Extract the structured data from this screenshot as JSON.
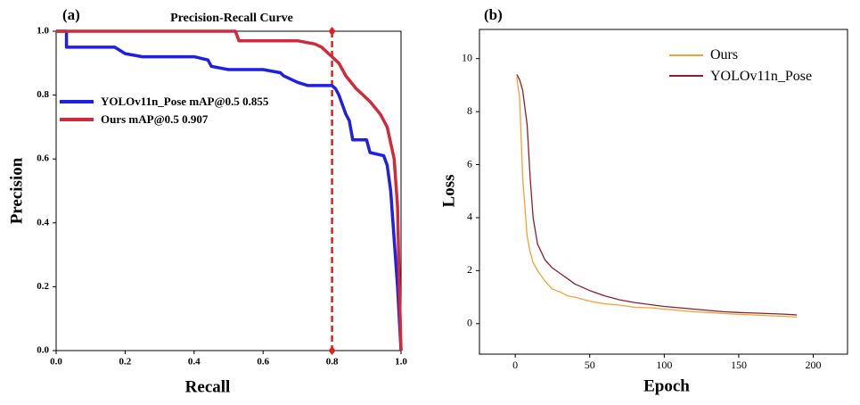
{
  "chart_data": [
    {
      "type": "line",
      "panel_label": "(a)",
      "title": "Precision-Recall Curve",
      "x_label": "Recall",
      "y_label": "Precision",
      "xlim": [
        0,
        1
      ],
      "ylim": [
        0,
        1
      ],
      "xticks": [
        {
          "value": 0,
          "label": "0.0"
        },
        0.2,
        0.4,
        0.6,
        0.8,
        {
          "value": 1,
          "label": "1.0"
        }
      ],
      "yticks": [
        {
          "value": 0,
          "label": "0.0"
        },
        0.2,
        0.4,
        0.6,
        0.8,
        {
          "value": 1,
          "label": "1.0"
        }
      ],
      "vline": 0.8,
      "vline_color": "#e02020",
      "legend": "center left",
      "series": [
        {
          "name": "YOLOv11n_Pose mAP@0.5 0.855",
          "color": "#1f1fe6",
          "x": [
            0,
            0.03,
            0.03,
            0.17,
            0.2,
            0.25,
            0.4,
            0.44,
            0.45,
            0.5,
            0.6,
            0.65,
            0.66,
            0.7,
            0.73,
            0.8,
            0.81,
            0.82,
            0.84,
            0.85,
            0.86,
            0.9,
            0.91,
            0.95,
            0.96,
            0.97,
            0.99,
            1.0
          ],
          "values": [
            1.0,
            1.0,
            0.95,
            0.95,
            0.93,
            0.92,
            0.92,
            0.91,
            0.89,
            0.88,
            0.88,
            0.87,
            0.86,
            0.84,
            0.83,
            0.83,
            0.82,
            0.8,
            0.74,
            0.72,
            0.66,
            0.66,
            0.62,
            0.61,
            0.58,
            0.5,
            0.2,
            0.0
          ]
        },
        {
          "name": "Ours mAP@0.5 0.907",
          "color": "#d12a3a",
          "x": [
            0,
            0.52,
            0.53,
            0.7,
            0.75,
            0.77,
            0.79,
            0.8,
            0.82,
            0.84,
            0.87,
            0.91,
            0.94,
            0.96,
            0.98,
            0.99,
            0.995,
            1.0
          ],
          "values": [
            1.0,
            1.0,
            0.97,
            0.97,
            0.96,
            0.95,
            0.93,
            0.92,
            0.9,
            0.86,
            0.82,
            0.78,
            0.74,
            0.7,
            0.6,
            0.45,
            0.2,
            0.0
          ]
        }
      ]
    },
    {
      "type": "line",
      "panel_label": "(b)",
      "x_label": "Epoch",
      "y_label": "Loss",
      "xlim": [
        -24,
        223
      ],
      "ylim": [
        -1.15,
        11.1
      ],
      "xticks": [
        0,
        50,
        100,
        150,
        200
      ],
      "yticks": [
        0,
        2,
        4,
        6,
        8,
        10
      ],
      "legend": "upper right",
      "x": [
        1,
        3,
        5,
        8,
        10,
        12,
        15,
        20,
        25,
        30,
        35,
        40,
        50,
        60,
        70,
        80,
        90,
        100,
        110,
        120,
        130,
        140,
        150,
        160,
        170,
        180,
        189
      ],
      "series": [
        {
          "name": "Ours",
          "color": "#f5a032",
          "values": [
            9.3,
            8.5,
            5.5,
            3.3,
            2.7,
            2.3,
            2.0,
            1.6,
            1.3,
            1.2,
            1.05,
            1.0,
            0.85,
            0.75,
            0.7,
            0.62,
            0.6,
            0.55,
            0.5,
            0.45,
            0.42,
            0.38,
            0.35,
            0.33,
            0.3,
            0.28,
            0.25
          ]
        },
        {
          "name": "YOLOv11n_Pose",
          "color": "#8b1f2f",
          "values": [
            9.4,
            9.2,
            8.8,
            7.5,
            5.5,
            4.0,
            3.0,
            2.4,
            2.1,
            1.9,
            1.7,
            1.5,
            1.25,
            1.05,
            0.9,
            0.8,
            0.72,
            0.65,
            0.6,
            0.55,
            0.5,
            0.45,
            0.42,
            0.4,
            0.38,
            0.36,
            0.33
          ]
        }
      ]
    }
  ]
}
